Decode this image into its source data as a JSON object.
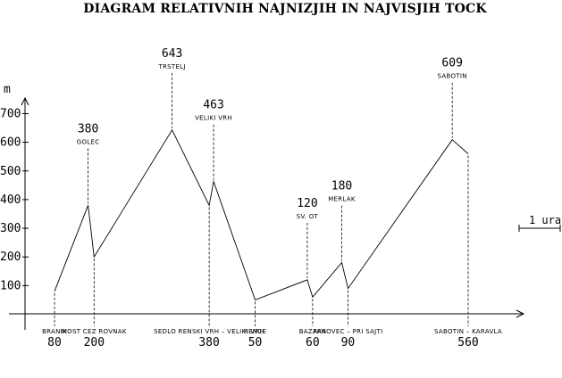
{
  "chart_data": {
    "type": "line",
    "title": "DIAGRAM RELATIVNIH NAJNIZJIH IN NAJVISJIH TOCK",
    "ylabel": "m",
    "ylim": [
      0,
      750
    ],
    "yticks": [
      100,
      200,
      300,
      400,
      500,
      600,
      700
    ],
    "grid": false,
    "scale_label": "1 ura",
    "points": [
      {
        "name": "BRANIK",
        "elev": 80,
        "value_label": "80",
        "pos": "below",
        "x": 0.0
      },
      {
        "name": "GOLEC",
        "elev": 380,
        "value_label": "380",
        "pos": "above",
        "x": 0.0812
      },
      {
        "name": "MOST CEZ ROVNAK",
        "elev": 200,
        "value_label": "200",
        "pos": "below",
        "x": 0.0957
      },
      {
        "name": "TRSTELJ",
        "elev": 643,
        "value_label": "643",
        "pos": "above",
        "x": 0.2842
      },
      {
        "name": "SEDLO RENSKI VRH – VELIKI VRH",
        "elev": 380,
        "value_label": "380",
        "pos": "below",
        "x": 0.3739
      },
      {
        "name": "VELIKI VRH",
        "elev": 463,
        "value_label": "463",
        "pos": "above",
        "x": 0.3846
      },
      {
        "name": "RENCE",
        "elev": 50,
        "value_label": "50",
        "pos": "below",
        "x": 0.485
      },
      {
        "name": "SV. OT",
        "elev": 120,
        "value_label": "120",
        "pos": "above",
        "x": 0.6111
      },
      {
        "name": "BAZARA",
        "elev": 60,
        "value_label": "60",
        "pos": "below",
        "x": 0.6239
      },
      {
        "name": "MERLAK",
        "elev": 180,
        "value_label": "180",
        "pos": "above",
        "x": 0.6944
      },
      {
        "name": "PANOVEC – PRI SAJTI",
        "elev": 90,
        "value_label": "90",
        "pos": "below",
        "x": 0.7094
      },
      {
        "name": "SABOTIN",
        "elev": 609,
        "value_label": "609",
        "pos": "above",
        "x": 0.9615
      },
      {
        "name": "SABOTIN – KARAVLA",
        "elev": 560,
        "value_label": "560",
        "pos": "below",
        "x": 1.0
      }
    ]
  }
}
